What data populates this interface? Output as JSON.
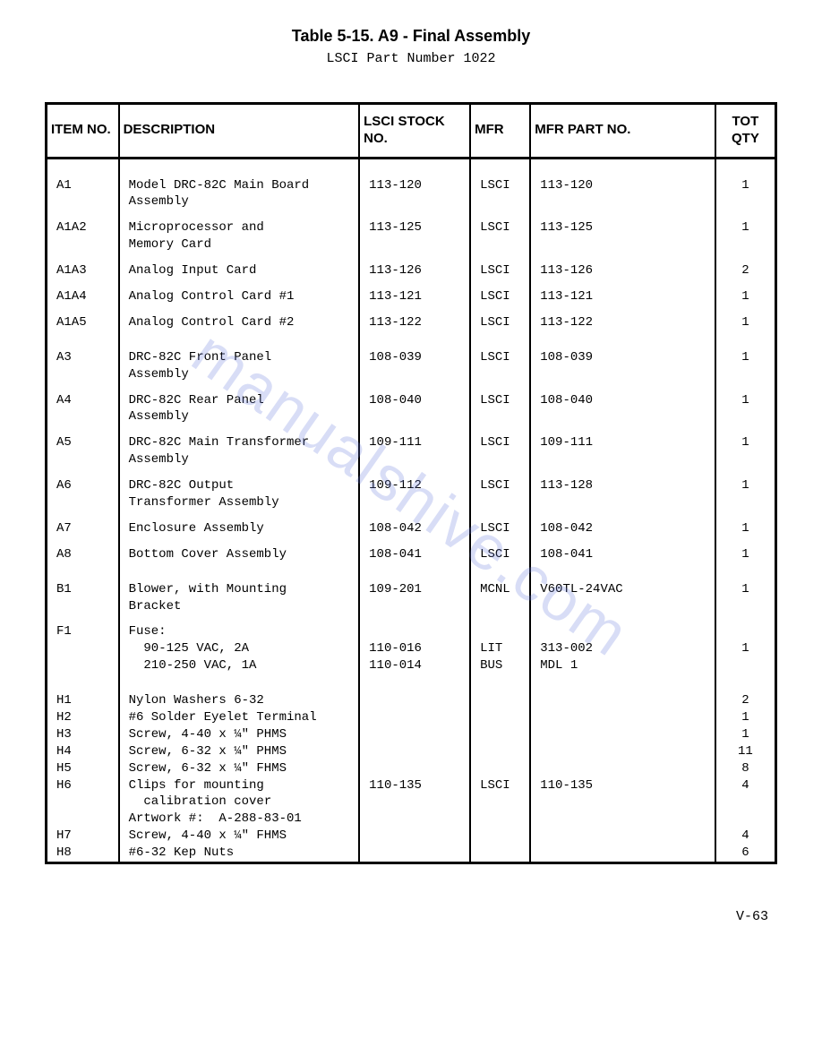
{
  "title": "Table 5-15. A9 - Final Assembly",
  "subtitle": "LSCI Part Number 1022",
  "watermark": "manualshive.com",
  "page_number": "V-63",
  "columns": {
    "item": "ITEM\nNO.",
    "desc": "DESCRIPTION",
    "stock": "LSCI\nSTOCK NO.",
    "mfr": "MFR",
    "part": "MFR PART NO.",
    "qty": "TOT\nQTY"
  },
  "rows": [
    {
      "cls": "pad-top",
      "item": "A1",
      "desc": "Model DRC-82C Main Board\nAssembly",
      "stock": "113-120",
      "mfr": "LSCI",
      "part": "113-120",
      "qty": "1"
    },
    {
      "cls": "pad-top-sm",
      "item": "A1A2",
      "desc": "Microprocessor and\nMemory Card",
      "stock": "113-125",
      "mfr": "LSCI",
      "part": "113-125",
      "qty": "1"
    },
    {
      "cls": "pad-top-sm",
      "item": "A1A3",
      "desc": "Analog Input Card",
      "stock": "113-126",
      "mfr": "LSCI",
      "part": "113-126",
      "qty": "2"
    },
    {
      "cls": "pad-top-sm",
      "item": "A1A4",
      "desc": "Analog Control Card #1",
      "stock": "113-121",
      "mfr": "LSCI",
      "part": "113-121",
      "qty": "1"
    },
    {
      "cls": "pad-top-sm",
      "item": "A1A5",
      "desc": "Analog Control Card #2",
      "stock": "113-122",
      "mfr": "LSCI",
      "part": "113-122",
      "qty": "1"
    },
    {
      "cls": "pad-top",
      "item": "A3",
      "desc": "DRC-82C Front Panel\nAssembly",
      "stock": "108-039",
      "mfr": "LSCI",
      "part": "108-039",
      "qty": "1"
    },
    {
      "cls": "pad-top-sm",
      "item": "A4",
      "desc": "DRC-82C Rear Panel\nAssembly",
      "stock": "108-040",
      "mfr": "LSCI",
      "part": "108-040",
      "qty": "1"
    },
    {
      "cls": "pad-top-sm",
      "item": "A5",
      "desc": "DRC-82C Main Transformer\nAssembly",
      "stock": "109-111",
      "mfr": "LSCI",
      "part": "109-111",
      "qty": "1"
    },
    {
      "cls": "pad-top-sm",
      "item": "A6",
      "desc": "DRC-82C Output\nTransformer Assembly",
      "stock": "109-112",
      "mfr": "LSCI",
      "part": "113-128",
      "qty": "1"
    },
    {
      "cls": "pad-top-sm",
      "item": "A7",
      "desc": "Enclosure Assembly",
      "stock": "108-042",
      "mfr": "LSCI",
      "part": "108-042",
      "qty": "1"
    },
    {
      "cls": "pad-top-sm",
      "item": "A8",
      "desc": "Bottom Cover Assembly",
      "stock": "108-041",
      "mfr": "LSCI",
      "part": "108-041",
      "qty": "1"
    },
    {
      "cls": "pad-top",
      "item": "B1",
      "desc": "Blower, with Mounting\nBracket",
      "stock": "109-201",
      "mfr": "MCNL",
      "part": "V60TL-24VAC",
      "qty": "1"
    },
    {
      "cls": "pad-top-sm",
      "item": "F1",
      "desc": "Fuse:\n  90-125 VAC, 2A\n  210-250 VAC, 1A",
      "stock": "\n110-016\n110-014",
      "mfr": "\nLIT\nBUS",
      "part": "\n313-002\nMDL 1",
      "qty": "\n1"
    },
    {
      "cls": "pad-top",
      "item": "H1",
      "desc": "Nylon Washers 6-32",
      "stock": "",
      "mfr": "",
      "part": "",
      "qty": "2"
    },
    {
      "cls": "tight",
      "item": "H2",
      "desc": "#6 Solder Eyelet Terminal",
      "stock": "",
      "mfr": "",
      "part": "",
      "qty": "1"
    },
    {
      "cls": "tight",
      "item": "H3",
      "desc": "Screw, 4-40 x ¼\" PHMS",
      "stock": "",
      "mfr": "",
      "part": "",
      "qty": "1"
    },
    {
      "cls": "tight",
      "item": "H4",
      "desc": "Screw, 6-32 x ¼\" PHMS",
      "stock": "",
      "mfr": "",
      "part": "",
      "qty": "11"
    },
    {
      "cls": "tight",
      "item": "H5",
      "desc": "Screw, 6-32 x ¼\" FHMS",
      "stock": "",
      "mfr": "",
      "part": "",
      "qty": "8"
    },
    {
      "cls": "tight",
      "item": "H6",
      "desc": "Clips for mounting\n  calibration cover\nArtwork #:  A-288-83-01",
      "stock": "110-135",
      "mfr": "LSCI",
      "part": "110-135",
      "qty": "4"
    },
    {
      "cls": "tight",
      "item": "H7",
      "desc": "Screw, 4-40 x ¼\" FHMS",
      "stock": "",
      "mfr": "",
      "part": "",
      "qty": "4"
    },
    {
      "cls": "tight pad-bot",
      "item": "H8",
      "desc": "#6-32 Kep Nuts",
      "stock": "",
      "mfr": "",
      "part": "",
      "qty": "6"
    }
  ],
  "style": {
    "page_bg": "#ffffff",
    "text_color": "#000000",
    "border_color": "#000000",
    "title_fontsize": 18,
    "body_fontsize": 14,
    "watermark_color": "rgba(100,120,220,0.25)"
  }
}
